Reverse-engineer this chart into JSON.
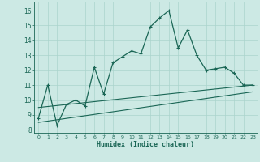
{
  "xlabel": "Humidex (Indice chaleur)",
  "xlim": [
    -0.5,
    23.5
  ],
  "ylim": [
    7.8,
    16.6
  ],
  "yticks": [
    8,
    9,
    10,
    11,
    12,
    13,
    14,
    15,
    16
  ],
  "xticks": [
    0,
    1,
    2,
    3,
    4,
    5,
    6,
    7,
    8,
    9,
    10,
    11,
    12,
    13,
    14,
    15,
    16,
    17,
    18,
    19,
    20,
    21,
    22,
    23
  ],
  "bg_color": "#cce9e4",
  "grid_color": "#aad4cc",
  "line_color": "#1a6655",
  "curve_x": [
    0,
    1,
    2,
    3,
    4,
    5,
    6,
    7,
    8,
    9,
    10,
    11,
    12,
    13,
    14,
    15,
    16,
    17,
    18,
    19,
    20,
    21,
    22,
    23
  ],
  "curve_y": [
    8.8,
    11.0,
    8.3,
    9.7,
    10.0,
    9.6,
    12.2,
    10.4,
    12.5,
    12.9,
    13.3,
    13.1,
    14.9,
    15.5,
    16.0,
    13.5,
    14.7,
    13.0,
    12.0,
    12.1,
    12.2,
    11.8,
    11.0,
    11.0
  ],
  "marker_x": [
    0,
    1,
    2,
    3,
    4,
    5,
    6,
    7,
    8,
    9,
    10,
    11,
    12,
    13,
    14,
    15,
    16,
    17,
    18,
    19,
    20,
    21,
    22,
    23
  ],
  "marker_y": [
    8.8,
    11.0,
    8.3,
    9.7,
    10.0,
    9.6,
    12.2,
    10.4,
    12.5,
    12.9,
    13.3,
    13.1,
    14.9,
    15.5,
    16.0,
    13.5,
    14.7,
    13.0,
    12.0,
    12.1,
    12.2,
    11.8,
    11.0,
    11.0
  ],
  "line1_x": [
    0,
    23
  ],
  "line1_y": [
    9.5,
    11.0
  ],
  "line2_x": [
    0,
    23
  ],
  "line2_y": [
    8.5,
    10.55
  ]
}
